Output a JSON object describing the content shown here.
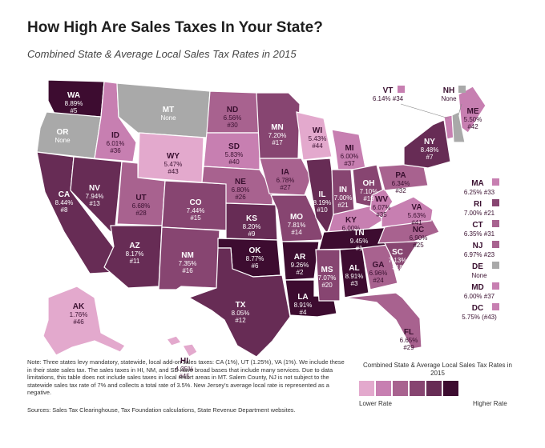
{
  "title": "How High Are Sales Taxes In Your  State?",
  "subtitle": "Combined State & Average Local Sales Tax Rates in 2015",
  "colors": {
    "bins": [
      "#e3a9cd",
      "#c77fb1",
      "#a8628f",
      "#874571",
      "#672c55",
      "#3d0c30"
    ],
    "none": "#a9a9a9",
    "text_dark": "#ffffff",
    "text_light": "#3a1030"
  },
  "states": [
    {
      "abbr": "WA",
      "rate": "8.89%",
      "rank": "#5",
      "rate_value": 8.89
    },
    {
      "abbr": "OR",
      "rate": "None",
      "rank": "",
      "rate_value": null
    },
    {
      "abbr": "CA",
      "rate": "8.44%",
      "rank": "#8",
      "rate_value": 8.44
    },
    {
      "abbr": "ID",
      "rate": "6.01%",
      "rank": "#36",
      "rate_value": 6.01
    },
    {
      "abbr": "NV",
      "rate": "7.94%",
      "rank": "#13",
      "rate_value": 7.94
    },
    {
      "abbr": "MT",
      "rate": "None",
      "rank": "",
      "rate_value": null
    },
    {
      "abbr": "WY",
      "rate": "5.47%",
      "rank": "#43",
      "rate_value": 5.47
    },
    {
      "abbr": "UT",
      "rate": "6.68%",
      "rank": "#28",
      "rate_value": 6.68
    },
    {
      "abbr": "AZ",
      "rate": "8.17%",
      "rank": "#11",
      "rate_value": 8.17
    },
    {
      "abbr": "CO",
      "rate": "7.44%",
      "rank": "#15",
      "rate_value": 7.44
    },
    {
      "abbr": "NM",
      "rate": "7.35%",
      "rank": "#16",
      "rate_value": 7.35
    },
    {
      "abbr": "ND",
      "rate": "6.56%",
      "rank": "#30",
      "rate_value": 6.56
    },
    {
      "abbr": "SD",
      "rate": "5.83%",
      "rank": "#40",
      "rate_value": 5.83
    },
    {
      "abbr": "NE",
      "rate": "6.80%",
      "rank": "#26",
      "rate_value": 6.8
    },
    {
      "abbr": "KS",
      "rate": "8.20%",
      "rank": "#9",
      "rate_value": 8.2
    },
    {
      "abbr": "OK",
      "rate": "8.77%",
      "rank": "#6",
      "rate_value": 8.77
    },
    {
      "abbr": "TX",
      "rate": "8.05%",
      "rank": "#12",
      "rate_value": 8.05
    },
    {
      "abbr": "MN",
      "rate": "7.20%",
      "rank": "#17",
      "rate_value": 7.2
    },
    {
      "abbr": "IA",
      "rate": "6.78%",
      "rank": "#27",
      "rate_value": 6.78
    },
    {
      "abbr": "MO",
      "rate": "7.81%",
      "rank": "#14",
      "rate_value": 7.81
    },
    {
      "abbr": "AR",
      "rate": "9.26%",
      "rank": "#2",
      "rate_value": 9.26
    },
    {
      "abbr": "LA",
      "rate": "8.91%",
      "rank": "#4",
      "rate_value": 8.91
    },
    {
      "abbr": "WI",
      "rate": "5.43%",
      "rank": "#44",
      "rate_value": 5.43
    },
    {
      "abbr": "IL",
      "rate": "8.19%",
      "rank": "#10",
      "rate_value": 8.19
    },
    {
      "abbr": "MI",
      "rate": "6.00%",
      "rank": "#37",
      "rate_value": 6.0
    },
    {
      "abbr": "IN",
      "rate": "7.00%",
      "rank": "#21",
      "rate_value": 7.0
    },
    {
      "abbr": "OH",
      "rate": "7.10%",
      "rank": "#19",
      "rate_value": 7.1
    },
    {
      "abbr": "KY",
      "rate": "6.00%",
      "rank": "#37",
      "rate_value": 6.0
    },
    {
      "abbr": "TN",
      "rate": "9.45%",
      "rank": "#1",
      "rate_value": 9.45
    },
    {
      "abbr": "MS",
      "rate": "7.07%",
      "rank": "#20",
      "rate_value": 7.07
    },
    {
      "abbr": "AL",
      "rate": "8.91%",
      "rank": "#3",
      "rate_value": 8.91
    },
    {
      "abbr": "GA",
      "rate": "6.96%",
      "rank": "#24",
      "rate_value": 6.96
    },
    {
      "abbr": "FL",
      "rate": "6.65%",
      "rank": "#29",
      "rate_value": 6.65
    },
    {
      "abbr": "SC",
      "rate": "7.13%",
      "rank": "#18",
      "rate_value": 7.13
    },
    {
      "abbr": "NC",
      "rate": "6.90%",
      "rank": "#25",
      "rate_value": 6.9
    },
    {
      "abbr": "VA",
      "rate": "5.63%",
      "rank": "#41",
      "rate_value": 5.63
    },
    {
      "abbr": "WV",
      "rate": "6.07%",
      "rank": "#35",
      "rate_value": 6.07
    },
    {
      "abbr": "PA",
      "rate": "6.34%",
      "rank": "#32",
      "rate_value": 6.34
    },
    {
      "abbr": "NY",
      "rate": "8.48%",
      "rank": "#7",
      "rate_value": 8.48
    },
    {
      "abbr": "ME",
      "rate": "5.50%",
      "rank": "#42",
      "rate_value": 5.5
    },
    {
      "abbr": "AK",
      "rate": "1.76%",
      "rank": "#46",
      "rate_value": 1.76
    },
    {
      "abbr": "HI",
      "rate": "4.35%",
      "rank": "#45",
      "rate_value": 4.35
    }
  ],
  "callouts_top": [
    {
      "abbr": "VT",
      "text": "6.14% #34",
      "rate_value": 6.14
    },
    {
      "abbr": "NH",
      "text": "None",
      "rate_value": null
    }
  ],
  "callouts_right": [
    {
      "abbr": "MA",
      "text": "6.25% #33",
      "rate_value": 6.25
    },
    {
      "abbr": "RI",
      "text": "7.00% #21",
      "rate_value": 7.0
    },
    {
      "abbr": "CT",
      "text": "6.35% #31",
      "rate_value": 6.35
    },
    {
      "abbr": "NJ",
      "text": "6.97% #23",
      "rate_value": 6.97
    },
    {
      "abbr": "DE",
      "text": "None",
      "rate_value": null
    },
    {
      "abbr": "MD",
      "text": "6.00% #37",
      "rate_value": 6.0
    },
    {
      "abbr": "DC",
      "text": "5.75% (#43)",
      "rate_value": 5.75
    }
  ],
  "note": "Note: Three states levy mandatory, statewide, local add-on sales taxes: CA (1%), UT (1.25%), VA (1%). We include these in their state sales tax. The sales taxes in HI, NM, and SD have broad bases that include many services. Due to data limitations, this table does not include sales taxes in local resort areas in MT. Salem County, NJ is not subject to the statewide sales tax rate of 7% and collects a total rate of 3.5%. New Jersey's average local rate is represented as a negative.",
  "sources": "Sources: Sales Tax Clearinghouse, Tax Foundation calculations, State Revenue Department websites.",
  "legend": {
    "title": "Combined State & Average Local Sales Tax Rates in 2015",
    "low": "Lower Rate",
    "high": "Higher Rate"
  }
}
